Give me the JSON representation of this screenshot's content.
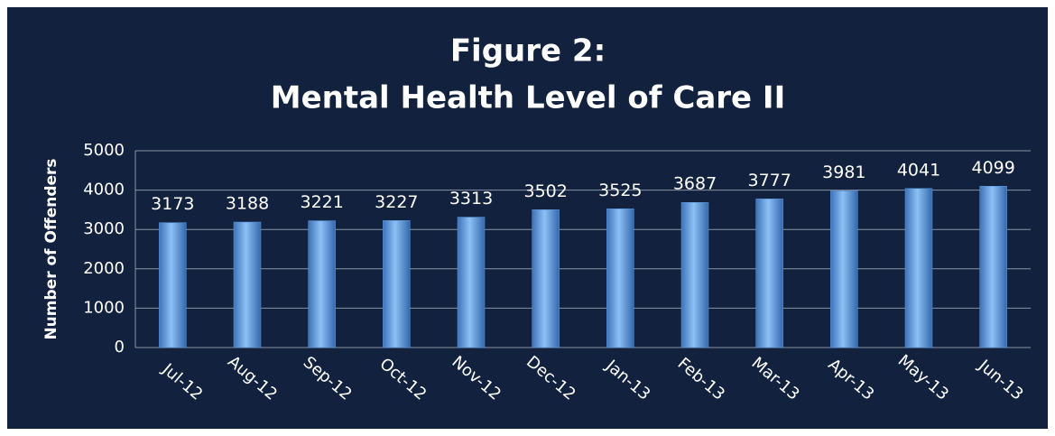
{
  "chart_data": {
    "type": "bar",
    "title": [
      "Figure 2:",
      "Mental Health Level of Care II"
    ],
    "y_label": "Number of Offenders",
    "categories": [
      "Jul-12",
      "Aug-12",
      "Sep-12",
      "Oct-12",
      "Nov-12",
      "Dec-12",
      "Jan-13",
      "Feb-13",
      "Mar-13",
      "Apr-13",
      "May-13",
      "Jun-13"
    ],
    "values": [
      3173,
      3188,
      3221,
      3227,
      3313,
      3502,
      3525,
      3687,
      3777,
      3981,
      4041,
      4099
    ],
    "color": "#5b9be0",
    "ylim": [
      0,
      5000
    ],
    "yticks": [
      0,
      1000,
      2000,
      3000,
      4000,
      5000
    ],
    "grid": true
  }
}
